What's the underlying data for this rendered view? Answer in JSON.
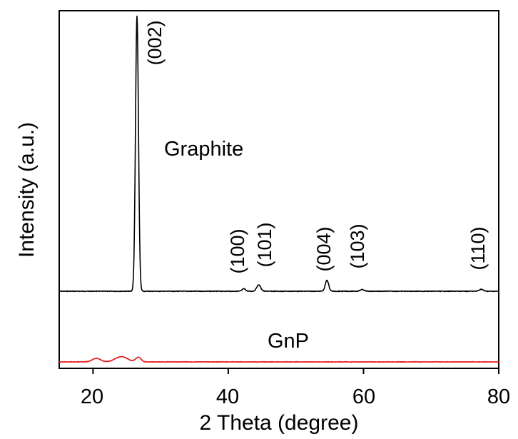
{
  "chart_data": {
    "type": "line",
    "title": "",
    "xlabel": "2 Theta (degree)",
    "ylabel": "Intensity (a.u.)",
    "xlim": [
      15,
      80
    ],
    "xticks": [
      20,
      40,
      60,
      80
    ],
    "yticks": [],
    "grid": false,
    "legend": "none",
    "series": [
      {
        "name": "Graphite",
        "color": "#000000",
        "baseline": 0.0,
        "peaks": [
          {
            "x": 26.5,
            "height": 100.0,
            "width": 0.22
          },
          {
            "x": 42.3,
            "height": 0.9,
            "width": 0.25
          },
          {
            "x": 44.5,
            "height": 2.3,
            "width": 0.3
          },
          {
            "x": 54.6,
            "height": 4.0,
            "width": 0.25
          },
          {
            "x": 59.8,
            "height": 0.6,
            "width": 0.3
          },
          {
            "x": 77.4,
            "height": 0.7,
            "width": 0.3
          }
        ]
      },
      {
        "name": "GnP",
        "color": "#e8191a",
        "baseline": 0.0,
        "peaks": [
          {
            "x": 20.5,
            "height": 1.6,
            "width": 0.6
          },
          {
            "x": 24.2,
            "height": 2.3,
            "width": 0.9
          },
          {
            "x": 26.7,
            "height": 2.0,
            "width": 0.4
          }
        ]
      }
    ],
    "peak_labels": [
      {
        "text": "(002)",
        "x": 26.5
      },
      {
        "text": "(100)",
        "x": 42.3
      },
      {
        "text": "(101)",
        "x": 44.5
      },
      {
        "text": "(004)",
        "x": 54.6
      },
      {
        "text": "(103)",
        "x": 59.8
      },
      {
        "text": "(110)",
        "x": 77.4
      }
    ]
  }
}
